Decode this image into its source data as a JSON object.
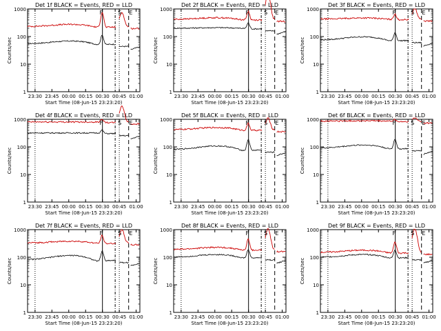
{
  "charts": [
    {
      "title": "Det 1f BLACK = Events, RED = LLD",
      "ylabel": "Counts/sec",
      "xlabel": "Start Time (08-Jun-15 23:23:20)",
      "black": {
        "base": 55,
        "bump": 0.25,
        "spike": 2.2
      },
      "red": {
        "base": 230,
        "bump": 0.2,
        "spike": 3.5,
        "flare": 3.2
      }
    },
    {
      "title": "Det 2f BLACK = Events, RED = LLD",
      "ylabel": "Counts/sec",
      "xlabel": "Start Time (08-Jun-15 23:23:20)",
      "black": {
        "base": 200,
        "bump": 0.05,
        "spike": 1.6
      },
      "red": {
        "base": 420,
        "bump": 0.15,
        "spike": 2.0,
        "flare": 7.5
      }
    },
    {
      "title": "Det 3f BLACK = Events, RED = LLD",
      "ylabel": "Counts/sec",
      "xlabel": "Start Time (08-Jun-15 23:23:20)",
      "black": {
        "base": 75,
        "bump": 0.3,
        "spike": 2.0
      },
      "red": {
        "base": 430,
        "bump": 0.1,
        "spike": 1.6,
        "flare": 2.4
      }
    },
    {
      "title": "Det 4f BLACK = Events, RED = LLD",
      "ylabel": "Counts/sec",
      "xlabel": "Start Time (08-Jun-15 23:23:20)",
      "black": {
        "base": 320,
        "bump": 0.0,
        "spike": 1.3
      },
      "red": {
        "base": 800,
        "bump": 0.0,
        "spike": 1.3,
        "flare": 3.8
      }
    },
    {
      "title": "Det 5f BLACK = Events, RED = LLD",
      "ylabel": "Counts/sec",
      "xlabel": "Start Time (08-Jun-15 23:23:20)",
      "black": {
        "base": 80,
        "bump": 0.35,
        "spike": 2.5
      },
      "red": {
        "base": 420,
        "bump": 0.2,
        "spike": 1.8,
        "flare": 2.6
      }
    },
    {
      "title": "Det 6f BLACK = Events, RED = LLD",
      "ylabel": "Counts/sec",
      "xlabel": "Start Time (08-Jun-15 23:23:20)",
      "black": {
        "base": 90,
        "bump": 0.3,
        "spike": 2.3
      },
      "red": {
        "base": 860,
        "bump": 0.03,
        "spike": 1.15,
        "flare": 1.3
      }
    },
    {
      "title": "Det 7f BLACK = Events, RED = LLD",
      "ylabel": "Counts/sec",
      "xlabel": "Start Time (08-Jun-15 23:23:20)",
      "black": {
        "base": 80,
        "bump": 0.45,
        "spike": 2.3
      },
      "red": {
        "base": 330,
        "bump": 0.15,
        "spike": 2.0,
        "flare": 3.0
      }
    },
    {
      "title": "Det 8f BLACK = Events, RED = LLD",
      "ylabel": "Counts/sec",
      "xlabel": "Start Time (08-Jun-15 23:23:20)",
      "black": {
        "base": 100,
        "bump": 0.25,
        "spike": 2.0
      },
      "red": {
        "base": 190,
        "bump": 0.2,
        "spike": 2.5,
        "flare": 5.5
      }
    },
    {
      "title": "Det 9f BLACK = Events, RED = LLD",
      "ylabel": "Counts/sec",
      "xlabel": "Start Time (08-Jun-15 23:23:20)",
      "black": {
        "base": 100,
        "bump": 0.25,
        "spike": 2.0
      },
      "red": {
        "base": 150,
        "bump": 0.2,
        "spike": 2.5,
        "flare": 7.0
      }
    }
  ],
  "chart_data": {
    "type": "line",
    "title": "Det 1f..9f BLACK = Events, RED = LLD",
    "ylabel": "Counts/sec",
    "xlabel": "Start Time (08-Jun-15 23:23:20)",
    "yscale": "log",
    "ylim": [
      1,
      1000
    ],
    "xlim_minutes_after_start": [
      0,
      100
    ],
    "xticks": [
      "23:30",
      "23:45",
      "00:00",
      "00:15",
      "00:30",
      "00:45",
      "01:00"
    ],
    "yticks": [
      "1",
      "10",
      "100",
      "1000"
    ],
    "series": [
      {
        "name": "Events",
        "color": "#000000"
      },
      {
        "name": "LLD",
        "color": "#cc0000"
      }
    ],
    "markers": {
      "dotted": [
        "23:30",
        "00:45"
      ],
      "solid": [
        "00:30"
      ],
      "dashdot": [
        "00:41"
      ],
      "dashed": [
        "00:53"
      ],
      "labels": [
        "F",
        "S",
        "E"
      ]
    },
    "grid": false
  },
  "xticks": [
    "23:30",
    "23:45",
    "00:00",
    "00:15",
    "00:30",
    "00:45",
    "01:00"
  ],
  "yticks": [
    "1",
    "10",
    "100",
    "1000"
  ]
}
